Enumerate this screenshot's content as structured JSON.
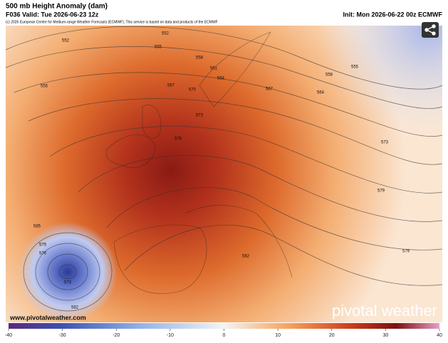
{
  "header": {
    "title": "500 mb Height Anomaly (dam)",
    "valid": "F036 Valid: Tue 2026-06-23 12z",
    "init": "Init: Mon 2026-06-22 00z ECMWF",
    "credit": "(c) 2026 European Centre for Medium-range Weather Forecasts (ECMWF). This service is based on data and products of the ECMWF"
  },
  "map": {
    "contour_labels": [
      "552",
      "552",
      "555",
      "555",
      "558",
      "561",
      "564",
      "567",
      "570",
      "573",
      "576",
      "555",
      "558",
      "567",
      "564",
      "573",
      "579",
      "579",
      "585",
      "579",
      "576",
      "573",
      "582",
      "582"
    ]
  },
  "watermark": {
    "url": "www.pivotalweather.com",
    "brand": "pivotal weather"
  },
  "colorbar": {
    "range": [
      -40,
      40
    ],
    "ticks": [
      -40,
      -30,
      -20,
      -10,
      0,
      10,
      20,
      30,
      40
    ]
  }
}
